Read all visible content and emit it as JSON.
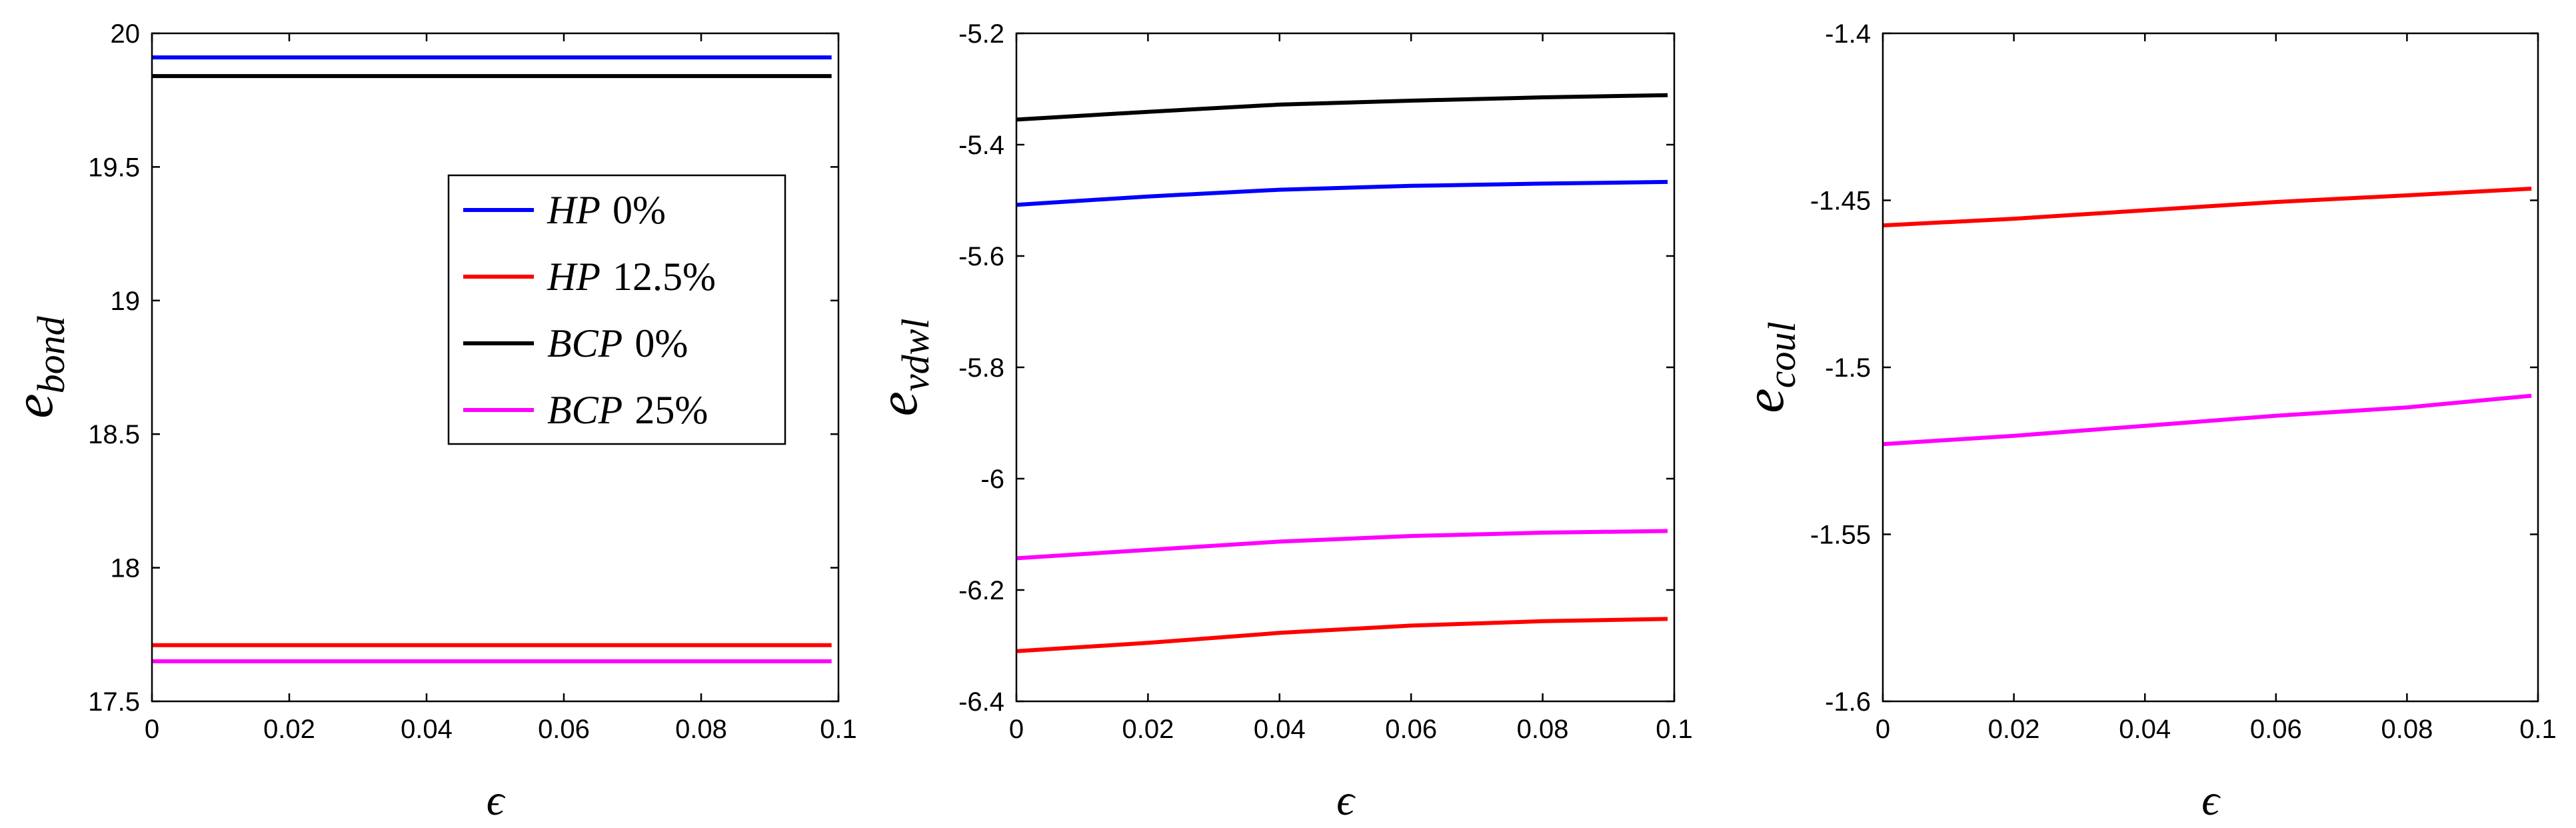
{
  "chart_data": [
    {
      "type": "line",
      "title": "",
      "xlabel": "ϵ",
      "ylabel": "e",
      "ylabel_sub": "bond",
      "xlim": [
        0,
        0.1
      ],
      "ylim": [
        17.5,
        20
      ],
      "xticks": [
        0,
        0.02,
        0.04,
        0.06,
        0.08,
        0.1
      ],
      "xtick_labels": [
        "0",
        "0.02",
        "0.04",
        "0.06",
        "0.08",
        "0.1"
      ],
      "yticks": [
        17.5,
        18,
        18.5,
        19,
        19.5,
        20
      ],
      "ytick_labels": [
        "17.5",
        "18",
        "18.5",
        "19",
        "19.5",
        "20"
      ],
      "grid": false,
      "legend": {
        "placement": "center-right",
        "entries": [
          {
            "name": "HP",
            "suffix": "0%",
            "color": "#0000ff"
          },
          {
            "name": "HP",
            "suffix": "12.5%",
            "color": "#ff0000"
          },
          {
            "name": "BCP",
            "suffix": "0%",
            "color": "#000000"
          },
          {
            "name": "BCP",
            "suffix": "25%",
            "color": "#ff00ff"
          }
        ]
      },
      "series": [
        {
          "color": "#0000ff",
          "x": [
            0,
            0.099
          ],
          "y": [
            19.91,
            19.91
          ]
        },
        {
          "color": "#ff0000",
          "x": [
            0,
            0.099
          ],
          "y": [
            17.71,
            17.71
          ]
        },
        {
          "color": "#000000",
          "x": [
            0,
            0.099
          ],
          "y": [
            19.84,
            19.84
          ]
        },
        {
          "color": "#ff00ff",
          "x": [
            0,
            0.099
          ],
          "y": [
            17.65,
            17.65
          ]
        }
      ]
    },
    {
      "type": "line",
      "title": "",
      "xlabel": "ϵ",
      "ylabel": "e",
      "ylabel_sub": "vdwl",
      "xlim": [
        0,
        0.1
      ],
      "ylim": [
        -6.4,
        -5.2
      ],
      "xticks": [
        0,
        0.02,
        0.04,
        0.06,
        0.08,
        0.1
      ],
      "xtick_labels": [
        "0",
        "0.02",
        "0.04",
        "0.06",
        "0.08",
        "0.1"
      ],
      "yticks": [
        -6.4,
        -6.2,
        -6,
        -5.8,
        -5.6,
        -5.4,
        -5.2
      ],
      "ytick_labels": [
        "-6.4",
        "-6.2",
        "-6",
        "-5.8",
        "-5.6",
        "-5.4",
        "-5.2"
      ],
      "grid": false,
      "series": [
        {
          "color": "#000000",
          "x": [
            0,
            0.02,
            0.04,
            0.06,
            0.08,
            0.099
          ],
          "y": [
            -5.355,
            -5.341,
            -5.328,
            -5.321,
            -5.315,
            -5.311
          ]
        },
        {
          "color": "#0000ff",
          "x": [
            0,
            0.02,
            0.04,
            0.06,
            0.08,
            0.099
          ],
          "y": [
            -5.508,
            -5.493,
            -5.481,
            -5.474,
            -5.47,
            -5.467
          ]
        },
        {
          "color": "#ff00ff",
          "x": [
            0,
            0.02,
            0.04,
            0.06,
            0.08,
            0.099
          ],
          "y": [
            -6.143,
            -6.128,
            -6.113,
            -6.103,
            -6.097,
            -6.094
          ]
        },
        {
          "color": "#ff0000",
          "x": [
            0,
            0.02,
            0.04,
            0.06,
            0.08,
            0.099
          ],
          "y": [
            -6.31,
            -6.295,
            -6.277,
            -6.264,
            -6.256,
            -6.252
          ]
        }
      ]
    },
    {
      "type": "line",
      "title": "",
      "xlabel": "ϵ",
      "ylabel": "e",
      "ylabel_sub": "coul",
      "xlim": [
        0,
        0.1
      ],
      "ylim": [
        -1.6,
        -1.4
      ],
      "xticks": [
        0,
        0.02,
        0.04,
        0.06,
        0.08,
        0.1
      ],
      "xtick_labels": [
        "0",
        "0.02",
        "0.04",
        "0.06",
        "0.08",
        "0.1"
      ],
      "yticks": [
        -1.6,
        -1.55,
        -1.5,
        -1.45,
        -1.4
      ],
      "ytick_labels": [
        "-1.6",
        "-1.55",
        "-1.5",
        "-1.45",
        "-1.4"
      ],
      "grid": false,
      "series": [
        {
          "color": "#ff0000",
          "x": [
            0,
            0.02,
            0.04,
            0.06,
            0.08,
            0.099
          ],
          "y": [
            -1.4575,
            -1.4555,
            -1.453,
            -1.4505,
            -1.4485,
            -1.4465
          ]
        },
        {
          "color": "#ff00ff",
          "x": [
            0,
            0.02,
            0.04,
            0.06,
            0.08,
            0.099
          ],
          "y": [
            -1.523,
            -1.5205,
            -1.5175,
            -1.5145,
            -1.512,
            -1.5085
          ]
        }
      ]
    }
  ]
}
